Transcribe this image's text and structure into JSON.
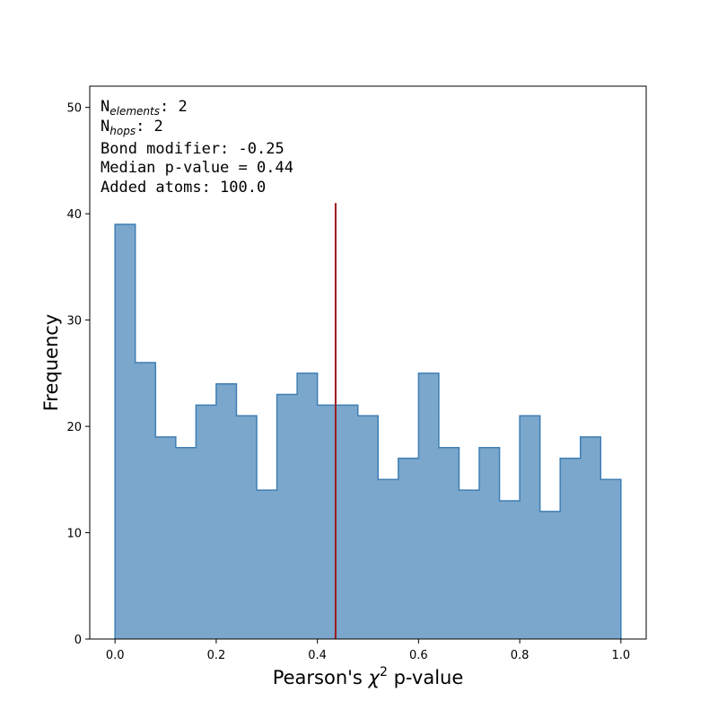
{
  "chart_data": {
    "type": "bar",
    "histogram": true,
    "bin_edges": [
      0.0,
      0.04,
      0.08,
      0.12,
      0.16,
      0.2,
      0.24,
      0.28,
      0.32,
      0.36,
      0.4,
      0.44,
      0.48,
      0.52,
      0.56,
      0.6,
      0.64,
      0.68,
      0.72,
      0.76,
      0.8,
      0.84,
      0.88,
      0.92,
      0.96,
      1.0
    ],
    "values": [
      39,
      26,
      19,
      18,
      22,
      24,
      21,
      14,
      23,
      25,
      22,
      22,
      21,
      15,
      17,
      25,
      18,
      14,
      18,
      13,
      21,
      12,
      17,
      19,
      15
    ],
    "fill_color": "#7ba7cc",
    "edge_color": "#3f7fb5",
    "xlabel": "Pearson's χ² p-value",
    "xlabel_main": "Pearson's ",
    "xlabel_chi": "χ",
    "xlabel_sup": "2",
    "xlabel_tail": " p-value",
    "ylabel": "Frequency",
    "xlim": [
      -0.05,
      1.05
    ],
    "ylim": [
      0,
      52
    ],
    "xticks": [
      0.0,
      0.2,
      0.4,
      0.6,
      0.8,
      1.0
    ],
    "xtick_labels": [
      "0.0",
      "0.2",
      "0.4",
      "0.6",
      "0.8",
      "1.0"
    ],
    "yticks": [
      0,
      10,
      20,
      30,
      40,
      50
    ],
    "ytick_labels": [
      "0",
      "10",
      "20",
      "30",
      "40",
      "50"
    ],
    "median_line": {
      "x": 0.436,
      "y_top": 41,
      "color": "#9b1c1c"
    },
    "annotations": {
      "n_elements_prefix": "N",
      "n_elements_sub": "elements",
      "n_elements_value": ": 2",
      "n_hops_prefix": "N",
      "n_hops_sub": "hops",
      "n_hops_value": ": 2",
      "bond_modifier": "Bond modifier: -0.25",
      "median_pvalue": "Median p-value = 0.44",
      "added_atoms": "Added atoms: 100.0"
    },
    "grid": false
  }
}
